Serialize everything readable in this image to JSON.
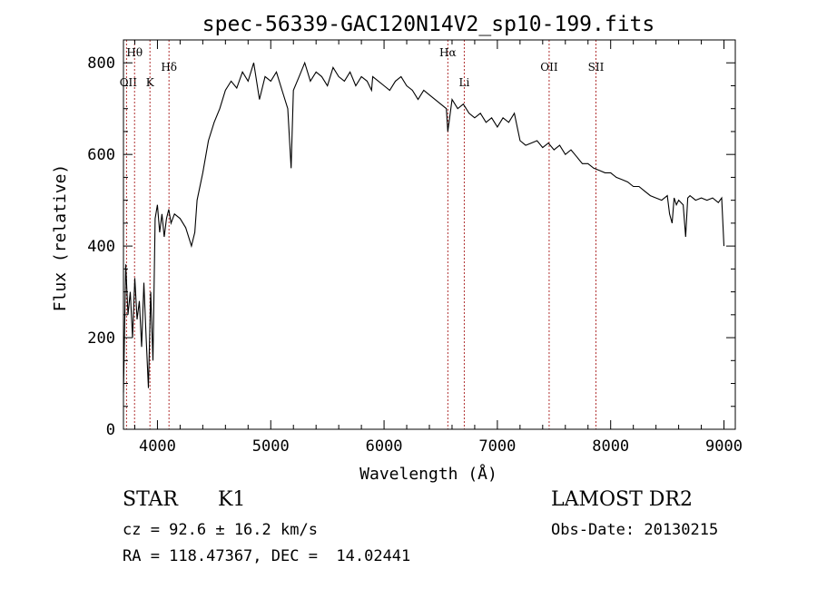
{
  "chart_data": {
    "type": "line",
    "title": "spec-56339-GAC120N14V2_sp10-199.fits",
    "xlabel": "Wavelength (Å)",
    "ylabel": "Flux (relative)",
    "xlim": [
      3700,
      9100
    ],
    "ylim": [
      0,
      850
    ],
    "xticks": [
      4000,
      5000,
      6000,
      7000,
      8000,
      9000
    ],
    "yticks": [
      0,
      200,
      400,
      600,
      800
    ],
    "grid": false,
    "series": [
      {
        "x": [
          3700,
          3720,
          3740,
          3760,
          3780,
          3800,
          3820,
          3840,
          3860,
          3880,
          3900,
          3920,
          3940,
          3960,
          3980,
          4000,
          4020,
          4040,
          4060,
          4080,
          4100,
          4120,
          4150,
          4200,
          4250,
          4300,
          4330,
          4350,
          4400,
          4450,
          4500,
          4550,
          4600,
          4650,
          4700,
          4750,
          4800,
          4850,
          4900,
          4950,
          5000,
          5050,
          5100,
          5150,
          5180,
          5200,
          5250,
          5300,
          5350,
          5400,
          5450,
          5500,
          5550,
          5600,
          5650,
          5700,
          5750,
          5800,
          5850,
          5890,
          5900,
          5950,
          6000,
          6050,
          6100,
          6150,
          6200,
          6250,
          6300,
          6350,
          6400,
          6450,
          6500,
          6550,
          6563,
          6600,
          6650,
          6700,
          6750,
          6800,
          6850,
          6900,
          6950,
          7000,
          7050,
          7100,
          7150,
          7200,
          7250,
          7300,
          7350,
          7400,
          7450,
          7500,
          7550,
          7600,
          7650,
          7700,
          7750,
          7800,
          7850,
          7900,
          7950,
          8000,
          8050,
          8100,
          8150,
          8200,
          8250,
          8300,
          8350,
          8400,
          8450,
          8500,
          8520,
          8542,
          8560,
          8580,
          8600,
          8640,
          8662,
          8680,
          8700,
          8750,
          8800,
          8850,
          8900,
          8950,
          8980,
          9000
        ],
        "y": [
          80,
          360,
          250,
          300,
          200,
          330,
          240,
          280,
          180,
          320,
          200,
          90,
          300,
          150,
          460,
          490,
          430,
          470,
          420,
          460,
          480,
          450,
          470,
          460,
          440,
          400,
          430,
          500,
          560,
          630,
          670,
          700,
          740,
          760,
          745,
          780,
          760,
          800,
          720,
          770,
          760,
          780,
          740,
          700,
          570,
          740,
          770,
          800,
          760,
          780,
          770,
          750,
          790,
          770,
          760,
          780,
          750,
          770,
          760,
          740,
          770,
          760,
          750,
          740,
          760,
          770,
          750,
          740,
          720,
          740,
          730,
          720,
          710,
          700,
          650,
          720,
          700,
          710,
          690,
          680,
          690,
          670,
          680,
          660,
          680,
          670,
          690,
          630,
          620,
          625,
          630,
          615,
          625,
          610,
          620,
          600,
          610,
          595,
          580,
          580,
          570,
          565,
          560,
          560,
          550,
          545,
          540,
          530,
          530,
          520,
          510,
          505,
          500,
          510,
          470,
          450,
          505,
          490,
          500,
          490,
          420,
          505,
          510,
          500,
          505,
          500,
          505,
          495,
          505,
          400
        ]
      }
    ],
    "lines": [
      {
        "label": "OII",
        "x": 3727
      },
      {
        "label": "Hθ",
        "x": 3798
      },
      {
        "label": "K",
        "x": 3934
      },
      {
        "label": "Hδ",
        "x": 4102
      },
      {
        "label": "Hα",
        "x": 6563
      },
      {
        "label": "Li",
        "x": 6708
      },
      {
        "label": "OII",
        "x": 7457
      },
      {
        "label": "SII",
        "x": 7870
      }
    ]
  },
  "info": {
    "class": "STAR",
    "subclass": "K1",
    "cz": "cz = 92.6 ± 16.2 km/s",
    "radec": "RA = 118.47367, DEC =  14.02441",
    "survey": "LAMOST DR2",
    "obsdate": "Obs-Date: 20130215"
  }
}
